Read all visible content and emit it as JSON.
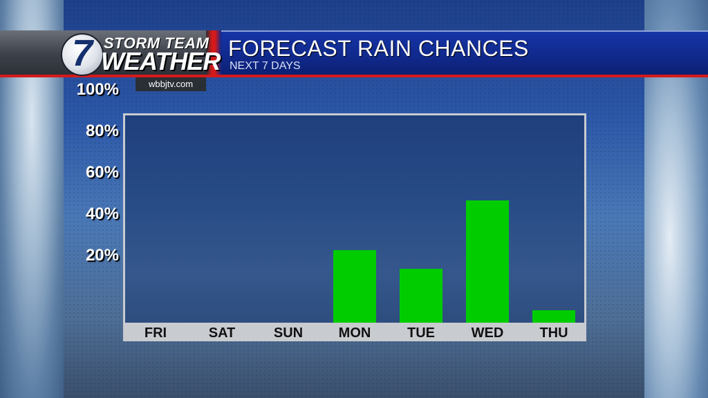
{
  "branding": {
    "logo_number": "7",
    "logo_line1": "STORM TEAM",
    "logo_line2": "WEATHER",
    "website": "wbbjtv.com"
  },
  "header": {
    "title": "FORECAST RAIN CHANCES",
    "subtitle": "NEXT 7 DAYS"
  },
  "colors": {
    "bar": "#00cc00",
    "accent_red": "#d51a1a",
    "banner_blue": "#10288a"
  },
  "chart_data": {
    "type": "bar",
    "categories": [
      "FRI",
      "SAT",
      "SUN",
      "MON",
      "TUE",
      "WED",
      "THU"
    ],
    "values": [
      0,
      0,
      0,
      35,
      26,
      59,
      6
    ],
    "ylim": [
      0,
      100
    ],
    "yticks": [
      20,
      40,
      60,
      80,
      100
    ],
    "ytick_labels": [
      "20%",
      "40%",
      "60%",
      "80%",
      "100%"
    ],
    "grid": false,
    "legend": "none"
  }
}
